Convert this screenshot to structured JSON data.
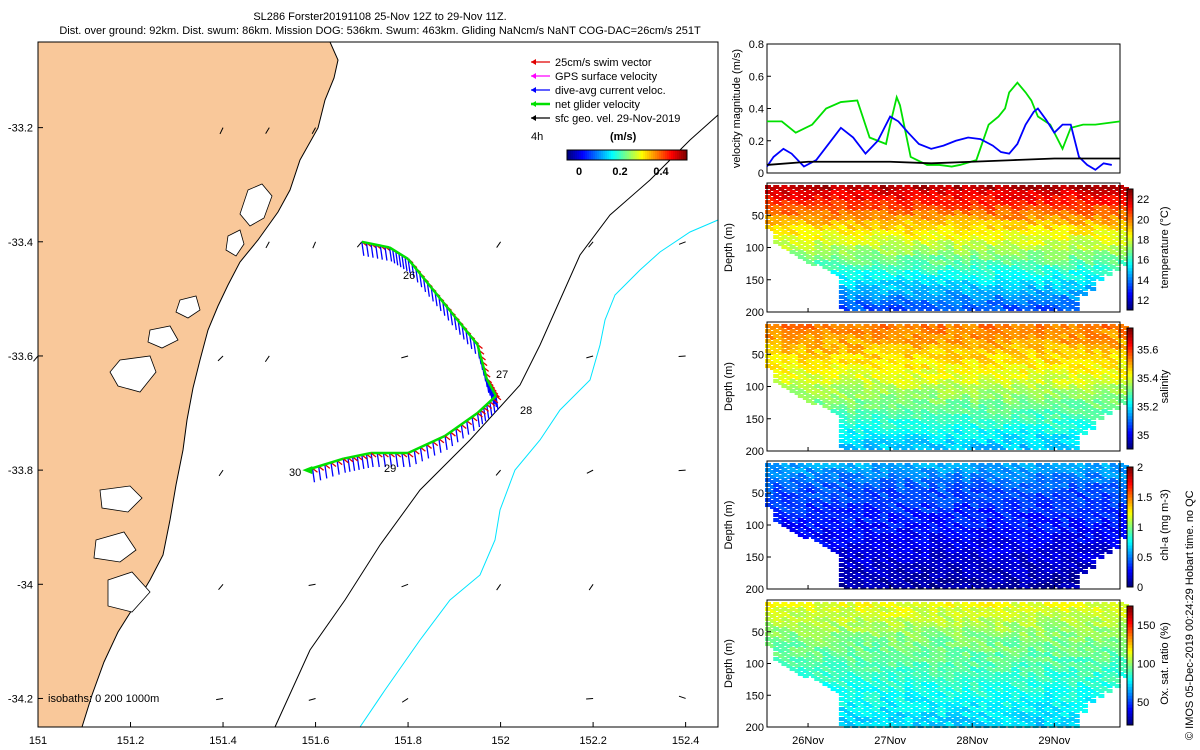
{
  "header": {
    "line1": "SL286 Forster20191108 25-Nov 12Z to 29-Nov 11Z.",
    "line2": "Dist. over ground: 92km. Dist. swum: 86km. Mission DOG: 536km. Swum: 463km. Gliding NaNcm/s NaNT COG-DAC=26cm/s 251T"
  },
  "credit": "© IMOS 05-Dec-2019 00:24:29 Hobart time. no QC",
  "colors": {
    "land": "#f9c89a",
    "swim": "#e00000",
    "gps": "#ff00ff",
    "dac": "#0000ff",
    "net": "#00e000",
    "sfc": "#000000",
    "isobath200": "#000000",
    "isobath1000": "#00e5ff"
  },
  "chart_data": [
    {
      "type": "map",
      "xlim": [
        151.0,
        152.47
      ],
      "ylim": [
        -34.25,
        -33.05
      ],
      "xticks": [
        "151",
        "151.2",
        "151.4",
        "151.6",
        "151.8",
        "152",
        "152.2",
        "152.4"
      ],
      "yticks": [
        "-33.2",
        "-33.4",
        "-33.6",
        "-33.8",
        "-34",
        "-34.2"
      ],
      "legend": {
        "items": [
          "25cm/s swim vector",
          "GPS surface velocity",
          "dive-avg current veloc.",
          "net glider velocity",
          "sfc geo. vel. 29-Nov-2019"
        ],
        "interval": "4h",
        "colorbar_title": "(m/s)",
        "colorbar_ticks": [
          "0",
          "0.2",
          "0.4"
        ]
      },
      "isobaths_label": "isobaths: 0   200  1000m",
      "day_labels": [
        "26",
        "27",
        "28",
        "29",
        "30"
      ],
      "track": [
        [
          151.7,
          -33.4
        ],
        [
          151.76,
          -33.41
        ],
        [
          151.8,
          -33.43
        ],
        [
          151.85,
          -33.48
        ],
        [
          151.9,
          -33.53
        ],
        [
          151.95,
          -33.58
        ],
        [
          151.97,
          -33.64
        ],
        [
          151.99,
          -33.67
        ],
        [
          151.95,
          -33.7
        ],
        [
          151.88,
          -33.74
        ],
        [
          151.8,
          -33.77
        ],
        [
          151.72,
          -33.77
        ],
        [
          151.66,
          -33.78
        ],
        [
          151.58,
          -33.8
        ]
      ],
      "geo_vectors": [
        [
          151.4,
          -33.2,
          -0.05
        ],
        [
          151.5,
          -33.2,
          0.05
        ],
        [
          151.6,
          -33.2,
          0.0
        ],
        [
          151.5,
          -33.4,
          0.0
        ],
        [
          151.6,
          -33.4,
          -0.1
        ],
        [
          151.7,
          -33.4,
          0.2
        ],
        [
          152.0,
          -33.4,
          0.1
        ],
        [
          152.2,
          -33.4,
          0.2
        ],
        [
          152.4,
          -33.4,
          0.7
        ],
        [
          151.0,
          -33.6,
          0.2
        ],
        [
          151.4,
          -33.6,
          0.3
        ],
        [
          151.5,
          -33.6,
          0.1
        ],
        [
          151.8,
          -33.6,
          0.8
        ],
        [
          152.2,
          -33.6,
          0.8
        ],
        [
          152.4,
          -33.6,
          1.0
        ],
        [
          151.4,
          -33.8,
          0.1
        ],
        [
          152.0,
          -33.8,
          0.2
        ],
        [
          152.2,
          -33.8,
          0.6
        ],
        [
          152.4,
          -33.8,
          1.0
        ],
        [
          151.4,
          -34.0,
          0.2
        ],
        [
          151.6,
          -34.0,
          0.9
        ],
        [
          151.8,
          -34.0,
          0.7
        ],
        [
          152.0,
          -34.0,
          0.1
        ],
        [
          152.2,
          -34.0,
          0.1
        ],
        [
          151.4,
          -34.2,
          0.9
        ],
        [
          151.6,
          -34.2,
          0.8
        ],
        [
          151.8,
          -34.2,
          0.5
        ],
        [
          152.2,
          -34.2,
          1.0
        ],
        [
          152.4,
          -34.2,
          1.4
        ]
      ]
    },
    {
      "type": "line",
      "ylabel": "velocity magnitude (m/s)",
      "ylim": [
        0,
        0.8
      ],
      "yticks": [
        "0",
        "0.2",
        "0.4",
        "0.6",
        "0.8"
      ],
      "xlim": [
        0,
        4.3
      ],
      "series": [
        {
          "color": "#00e000",
          "x": [
            0,
            0.18,
            0.35,
            0.55,
            0.72,
            0.9,
            1.1,
            1.25,
            1.45,
            1.5,
            1.58,
            1.62,
            1.75,
            1.95,
            2.1,
            2.25,
            2.35,
            2.55,
            2.7,
            2.82,
            2.9,
            2.95,
            3.05,
            3.15,
            3.22,
            3.3,
            3.45,
            3.6,
            3.7,
            3.85,
            4.0,
            4.15,
            4.3
          ],
          "y": [
            0.32,
            0.32,
            0.25,
            0.3,
            0.4,
            0.44,
            0.45,
            0.22,
            0.18,
            0.3,
            0.47,
            0.42,
            0.1,
            0.05,
            0.05,
            0.04,
            0.05,
            0.08,
            0.3,
            0.35,
            0.4,
            0.5,
            0.56,
            0.5,
            0.45,
            0.35,
            0.3,
            0.15,
            0.28,
            0.3,
            0.3,
            0.31,
            0.32
          ]
        },
        {
          "color": "#0000ff",
          "x": [
            0,
            0.08,
            0.2,
            0.3,
            0.45,
            0.6,
            0.75,
            0.9,
            1.05,
            1.2,
            1.35,
            1.5,
            1.6,
            1.72,
            1.85,
            2.0,
            2.15,
            2.3,
            2.45,
            2.6,
            2.75,
            2.85,
            2.95,
            3.05,
            3.15,
            3.25,
            3.3,
            3.4,
            3.5,
            3.6,
            3.7,
            3.8,
            3.9,
            4.0,
            4.1,
            4.2
          ],
          "y": [
            0.04,
            0.1,
            0.15,
            0.12,
            0.04,
            0.08,
            0.18,
            0.28,
            0.22,
            0.12,
            0.2,
            0.35,
            0.32,
            0.25,
            0.18,
            0.15,
            0.17,
            0.2,
            0.22,
            0.21,
            0.17,
            0.13,
            0.12,
            0.18,
            0.3,
            0.38,
            0.4,
            0.33,
            0.25,
            0.3,
            0.3,
            0.1,
            0.05,
            0.02,
            0.06,
            0.05
          ]
        },
        {
          "color": "#000000",
          "x": [
            0,
            0.5,
            1,
            1.5,
            2,
            2.5,
            3,
            3.5,
            4,
            4.3
          ],
          "y": [
            0.05,
            0.07,
            0.07,
            0.07,
            0.06,
            0.07,
            0.08,
            0.09,
            0.09,
            0.09
          ]
        }
      ]
    },
    {
      "type": "scatter",
      "ylabel": "Depth (m)",
      "clabel": "temperature (°C)",
      "ylim": [
        200,
        0
      ],
      "yticks": [
        "50",
        "100",
        "150",
        "200"
      ],
      "cticks": [
        "12",
        "14",
        "16",
        "18",
        "20",
        "22"
      ],
      "crange": [
        11,
        23
      ],
      "surface": 22.5,
      "bottom": 13,
      "thermocline": 60
    },
    {
      "type": "scatter",
      "ylabel": "Depth (m)",
      "clabel": "salinity",
      "ylim": [
        200,
        0
      ],
      "yticks": [
        "50",
        "100",
        "150",
        "200"
      ],
      "cticks": [
        "35",
        "35.2",
        "35.4",
        "35.6"
      ],
      "crange": [
        34.9,
        35.75
      ],
      "surface": 35.55,
      "bottom": 35.15,
      "thermocline": 80
    },
    {
      "type": "scatter",
      "ylabel": "Depth (m)",
      "clabel": "chl-a (mg m-3)",
      "ylim": [
        200,
        0
      ],
      "yticks": [
        "50",
        "100",
        "150",
        "200"
      ],
      "cticks": [
        "0",
        "0.5",
        "1",
        "1.5",
        "2"
      ],
      "crange": [
        0,
        2
      ],
      "surface": 0.6,
      "bottom": 0.05,
      "thermocline": 40
    },
    {
      "type": "scatter",
      "ylabel": "Depth (m)",
      "clabel": "Ox. sat. ratio (%)",
      "ylim": [
        200,
        0
      ],
      "yticks": [
        "50",
        "100",
        "150",
        "200"
      ],
      "cticks": [
        "50",
        "100",
        "150"
      ],
      "crange": [
        20,
        175
      ],
      "surface": 115,
      "bottom": 70,
      "thermocline": 50
    }
  ],
  "time_axis": {
    "labels": [
      "26Nov",
      "27Nov",
      "28Nov",
      "29Nov"
    ],
    "positions": [
      0.5,
      1.5,
      2.5,
      3.5
    ]
  }
}
